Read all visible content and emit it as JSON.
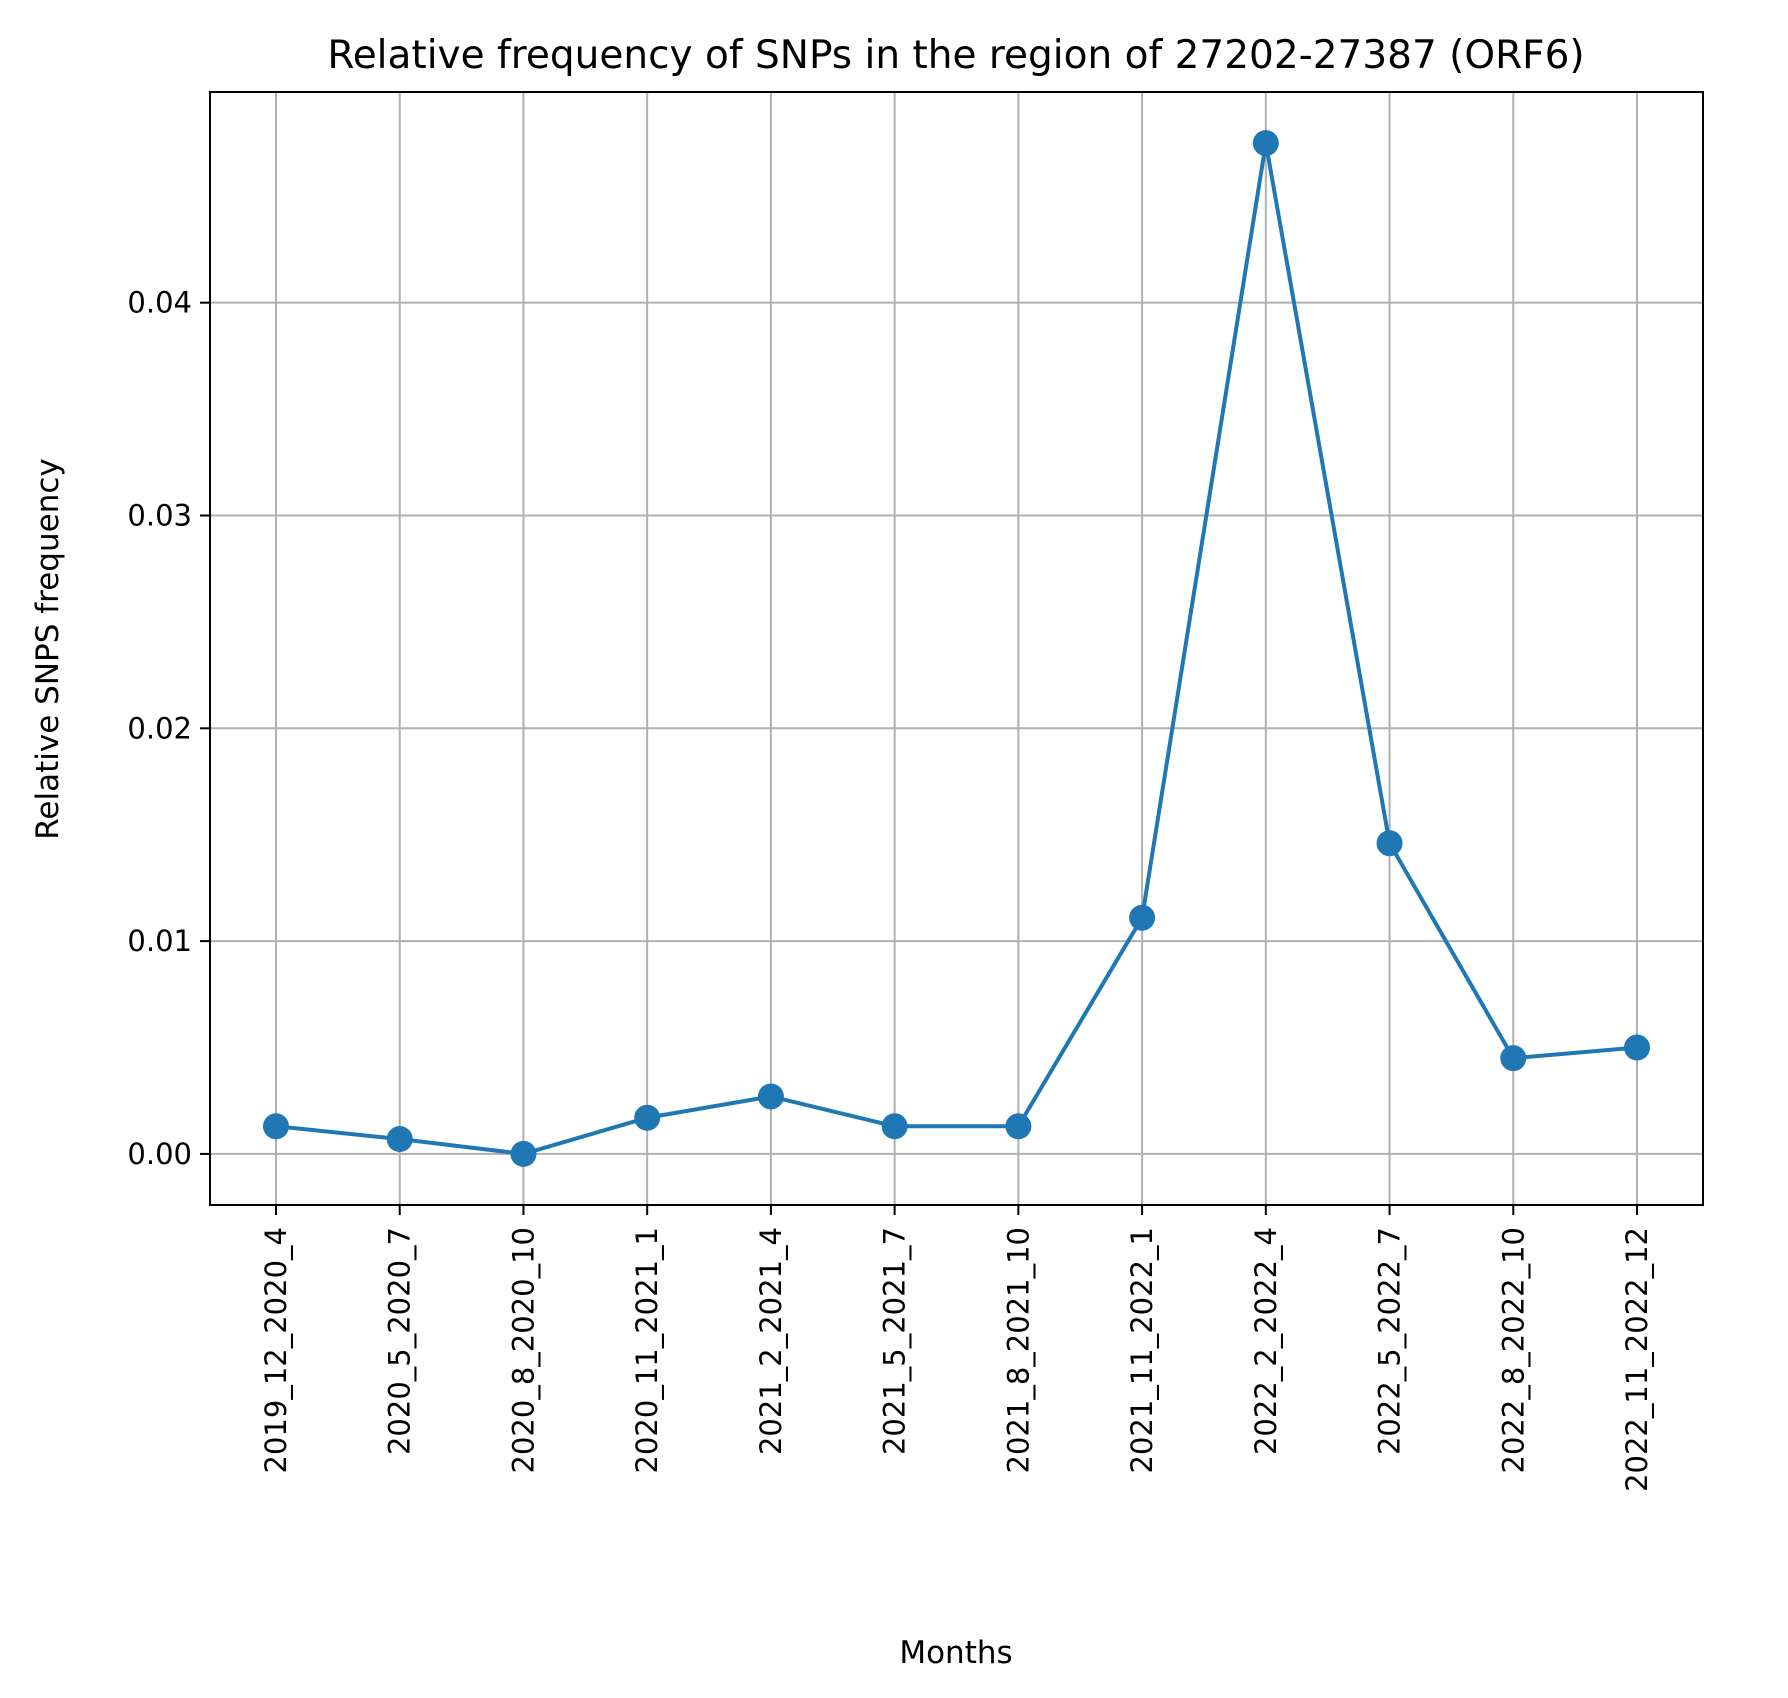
{
  "chart_data": {
    "type": "line",
    "title": "Relative frequency of SNPs in the region of 27202-27387 (ORF6)",
    "xlabel": "Months",
    "ylabel": "Relative SNPS frequency",
    "categories": [
      "2019_12_2020_4",
      "2020_5_2020_7",
      "2020_8_2020_10",
      "2020_11_2021_1",
      "2021_2_2021_4",
      "2021_5_2021_7",
      "2021_8_2021_10",
      "2021_11_2022_1",
      "2022_2_2022_4",
      "2022_5_2022_7",
      "2022_8_2022_10",
      "2022_11_2022_12"
    ],
    "series": [
      {
        "values": [
          0.0013,
          0.0007,
          0.0,
          0.0017,
          0.0027,
          0.0013,
          0.0013,
          0.0111,
          0.0475,
          0.0146,
          0.0045,
          0.005
        ],
        "color": "#1f77b4",
        "marker": "circle"
      }
    ],
    "ylim": [
      -0.0024,
      0.0499
    ],
    "yticks": [
      0.0,
      0.01,
      0.02,
      0.03,
      0.04
    ],
    "ytick_labels": [
      "0.00",
      "0.01",
      "0.02",
      "0.03",
      "0.04"
    ],
    "grid": true,
    "legend": "none"
  }
}
